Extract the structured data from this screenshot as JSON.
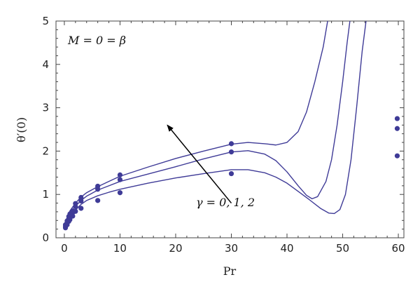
{
  "colors": {
    "series": "#3f3b97",
    "axis": "#444444",
    "arrow": "#000000"
  },
  "chart_data": {
    "type": "line",
    "title": "",
    "xlabel": "Pr",
    "ylabel": "θ′(0)",
    "xlim": [
      -1.5,
      61
    ],
    "ylim": [
      0,
      5
    ],
    "xticks": [
      0,
      10,
      20,
      30,
      40,
      50,
      60
    ],
    "yticks": [
      0,
      1,
      2,
      3,
      4,
      5
    ],
    "grid": false,
    "legend": "none",
    "annotations": [
      {
        "text": "M = 0 = β",
        "location": "top-left"
      },
      {
        "text": "γ = 0, 1, 2",
        "arrow_from": [
          30,
          0.8
        ],
        "arrow_to": [
          18.5,
          2.6
        ]
      }
    ],
    "series": [
      {
        "kind": "line",
        "points": [
          [
            0.3,
            0.3
          ],
          [
            0.7,
            0.4
          ],
          [
            1,
            0.5
          ],
          [
            2,
            0.64
          ],
          [
            3,
            0.77
          ],
          [
            4,
            0.86
          ],
          [
            6,
            0.97
          ],
          [
            8,
            1.05
          ],
          [
            10,
            1.12
          ],
          [
            15,
            1.26
          ],
          [
            20,
            1.38
          ],
          [
            25,
            1.48
          ],
          [
            30,
            1.57
          ],
          [
            33,
            1.57
          ],
          [
            36,
            1.5
          ],
          [
            38,
            1.4
          ],
          [
            40,
            1.26
          ],
          [
            42,
            1.07
          ],
          [
            44,
            0.88
          ],
          [
            46,
            0.68
          ],
          [
            47.5,
            0.57
          ],
          [
            48.5,
            0.56
          ],
          [
            49.5,
            0.65
          ],
          [
            50.5,
            1.0
          ],
          [
            51.5,
            1.8
          ],
          [
            52.5,
            3.0
          ],
          [
            53.5,
            4.3
          ],
          [
            54.2,
            5.0
          ]
        ]
      },
      {
        "kind": "line",
        "points": [
          [
            0.3,
            0.35
          ],
          [
            0.7,
            0.47
          ],
          [
            1,
            0.57
          ],
          [
            2,
            0.73
          ],
          [
            3,
            0.86
          ],
          [
            4,
            0.96
          ],
          [
            6,
            1.1
          ],
          [
            8,
            1.2
          ],
          [
            10,
            1.3
          ],
          [
            15,
            1.47
          ],
          [
            20,
            1.64
          ],
          [
            25,
            1.82
          ],
          [
            30,
            1.98
          ],
          [
            33,
            2.01
          ],
          [
            36,
            1.93
          ],
          [
            38,
            1.78
          ],
          [
            40,
            1.52
          ],
          [
            42,
            1.2
          ],
          [
            43.5,
            0.98
          ],
          [
            44.5,
            0.9
          ],
          [
            45.5,
            0.95
          ],
          [
            47,
            1.3
          ],
          [
            48,
            1.8
          ],
          [
            49,
            2.6
          ],
          [
            50,
            3.6
          ],
          [
            50.8,
            4.5
          ],
          [
            51.3,
            5.0
          ]
        ]
      },
      {
        "kind": "line",
        "points": [
          [
            0.3,
            0.4
          ],
          [
            0.7,
            0.52
          ],
          [
            1,
            0.62
          ],
          [
            2,
            0.8
          ],
          [
            3,
            0.94
          ],
          [
            4,
            1.04
          ],
          [
            6,
            1.18
          ],
          [
            8,
            1.3
          ],
          [
            10,
            1.42
          ],
          [
            15,
            1.63
          ],
          [
            20,
            1.83
          ],
          [
            25,
            2.0
          ],
          [
            30,
            2.16
          ],
          [
            33,
            2.2
          ],
          [
            36,
            2.17
          ],
          [
            38,
            2.14
          ],
          [
            40,
            2.2
          ],
          [
            42,
            2.45
          ],
          [
            43.5,
            2.9
          ],
          [
            45,
            3.6
          ],
          [
            46.5,
            4.4
          ],
          [
            47.3,
            5.0
          ]
        ]
      },
      {
        "kind": "points",
        "points": [
          [
            0.2,
            0.23
          ],
          [
            0.5,
            0.3
          ],
          [
            0.8,
            0.38
          ],
          [
            1,
            0.42
          ],
          [
            1.5,
            0.5
          ],
          [
            2,
            0.61
          ],
          [
            3,
            0.68
          ],
          [
            6,
            0.86
          ],
          [
            10,
            1.04
          ],
          [
            30,
            1.48
          ],
          [
            59.8,
            1.89
          ]
        ]
      },
      {
        "kind": "points",
        "points": [
          [
            0.2,
            0.26
          ],
          [
            0.5,
            0.35
          ],
          [
            0.8,
            0.44
          ],
          [
            1,
            0.47
          ],
          [
            1.5,
            0.58
          ],
          [
            2,
            0.72
          ],
          [
            3,
            0.85
          ],
          [
            6,
            1.12
          ],
          [
            10,
            1.34
          ],
          [
            30,
            1.98
          ],
          [
            59.8,
            2.52
          ]
        ]
      },
      {
        "kind": "points",
        "points": [
          [
            0.2,
            0.3
          ],
          [
            0.5,
            0.39
          ],
          [
            0.8,
            0.49
          ],
          [
            1,
            0.55
          ],
          [
            1.5,
            0.62
          ],
          [
            2,
            0.79
          ],
          [
            3,
            0.93
          ],
          [
            6,
            1.19
          ],
          [
            10,
            1.45
          ],
          [
            30,
            2.17
          ],
          [
            59.8,
            2.75
          ]
        ]
      }
    ]
  }
}
